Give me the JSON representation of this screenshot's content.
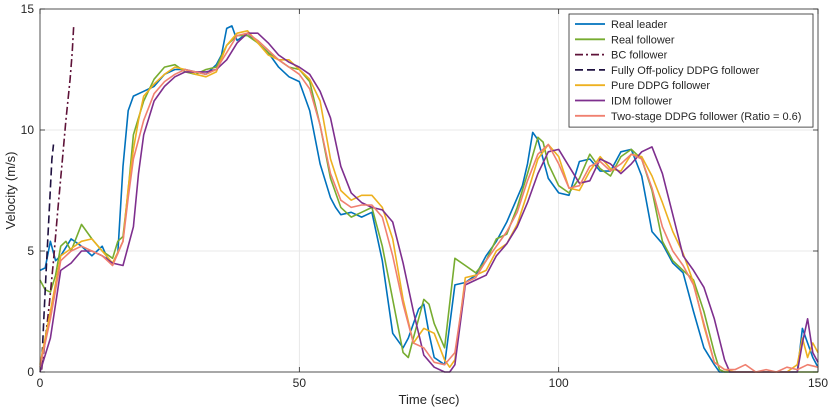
{
  "chart_data": {
    "type": "line",
    "title": "",
    "xlabel": "Time (sec)",
    "ylabel": "Velocity (m/s)",
    "xlim": [
      0,
      150
    ],
    "ylim": [
      0,
      15
    ],
    "xticks": [
      0,
      50,
      100,
      150
    ],
    "yticks": [
      0,
      5,
      10,
      15
    ],
    "grid": true,
    "legend_position": "top-right",
    "series": [
      {
        "name": "Real leader",
        "color": "#0072BD",
        "dash": "solid",
        "x": [
          0,
          1,
          2,
          3,
          4,
          6,
          8,
          10,
          12,
          13,
          14,
          15,
          16,
          17,
          18,
          20,
          22,
          24,
          26,
          28,
          30,
          32,
          34,
          35,
          36,
          37,
          38,
          40,
          42,
          44,
          46,
          48,
          50,
          52,
          54,
          56,
          57,
          58,
          60,
          62,
          64,
          66,
          68,
          70,
          71,
          72,
          73,
          74,
          75,
          76,
          78,
          80,
          82,
          84,
          86,
          88,
          90,
          92,
          93,
          94,
          95,
          96,
          98,
          100,
          102,
          104,
          106,
          108,
          110,
          112,
          114,
          116,
          118,
          120,
          122,
          124,
          126,
          128,
          130,
          131,
          132,
          134,
          136,
          138,
          140,
          142,
          144,
          146,
          147,
          148,
          149,
          150
        ],
        "y": [
          4.2,
          4.3,
          5.4,
          4.6,
          4.8,
          5.5,
          5.2,
          4.8,
          5.2,
          4.7,
          4.5,
          4.9,
          8.5,
          10.8,
          11.4,
          11.6,
          11.8,
          12.3,
          12.5,
          12.5,
          12.4,
          12.3,
          12.7,
          13.1,
          14.2,
          14.3,
          13.7,
          14.0,
          13.6,
          13.2,
          12.6,
          12.2,
          12.0,
          10.8,
          8.6,
          7.2,
          6.8,
          6.5,
          6.6,
          6.4,
          6.6,
          4.6,
          1.6,
          1.0,
          1.4,
          2.0,
          2.6,
          2.8,
          1.6,
          0.6,
          0.3,
          3.6,
          3.7,
          4.0,
          4.8,
          5.4,
          6.2,
          7.2,
          7.7,
          8.6,
          9.9,
          9.6,
          8.0,
          7.4,
          7.3,
          8.7,
          8.8,
          8.3,
          8.3,
          9.1,
          9.2,
          8.1,
          5.8,
          5.3,
          4.5,
          4.1,
          2.5,
          1.0,
          0.3,
          0.0,
          0.0,
          0.0,
          0.0,
          0.0,
          0.0,
          0.0,
          0.0,
          0.0,
          1.8,
          1.2,
          0.6,
          0.2
        ]
      },
      {
        "name": "Real follower",
        "color": "#77AC30",
        "dash": "solid",
        "x": [
          0,
          1,
          2,
          3,
          4,
          5,
          6,
          8,
          10,
          12,
          14,
          15,
          16,
          17,
          18,
          20,
          22,
          24,
          26,
          28,
          30,
          32,
          34,
          36,
          38,
          40,
          42,
          44,
          46,
          48,
          50,
          52,
          54,
          56,
          58,
          60,
          62,
          64,
          66,
          68,
          70,
          71,
          72,
          73,
          74,
          75,
          76,
          78,
          80,
          82,
          84,
          86,
          88,
          90,
          92,
          94,
          96,
          97,
          98,
          100,
          102,
          104,
          106,
          108,
          110,
          112,
          114,
          116,
          118,
          120,
          122,
          124,
          126,
          128,
          130,
          131,
          132,
          134,
          136,
          138,
          140,
          142,
          144,
          146,
          148,
          150
        ],
        "y": [
          3.8,
          3.4,
          3.3,
          4.0,
          5.2,
          5.4,
          5.0,
          6.1,
          5.5,
          5.0,
          4.7,
          5.4,
          5.6,
          7.5,
          9.8,
          11.2,
          12.1,
          12.6,
          12.7,
          12.4,
          12.3,
          12.5,
          12.6,
          13.5,
          13.9,
          13.9,
          13.6,
          13.2,
          12.9,
          12.6,
          12.5,
          12.0,
          10.2,
          8.0,
          6.8,
          6.4,
          6.6,
          6.8,
          5.2,
          3.0,
          0.8,
          0.6,
          1.4,
          2.2,
          3.0,
          2.8,
          2.0,
          1.0,
          4.7,
          4.4,
          4.1,
          4.6,
          5.5,
          5.7,
          6.8,
          8.2,
          9.7,
          9.5,
          8.6,
          7.7,
          7.4,
          8.0,
          9.0,
          8.4,
          8.1,
          8.9,
          9.2,
          8.8,
          7.5,
          5.4,
          4.6,
          4.2,
          3.8,
          2.5,
          0.8,
          0.1,
          0.0,
          0.0,
          0.0,
          0.0,
          0.0,
          0.0,
          0.0,
          0.0,
          0.0,
          0.0
        ]
      },
      {
        "name": "BC follower",
        "color": "#5E1238",
        "dash": "dashdot",
        "x": [
          0.3,
          1.0,
          1.8,
          2.6,
          3.4,
          4.2,
          5.0,
          5.8,
          6.2,
          6.5
        ],
        "y": [
          0.1,
          1.3,
          2.8,
          4.6,
          6.6,
          8.5,
          10.4,
          12.1,
          13.2,
          14.3
        ]
      },
      {
        "name": "Fully Off-policy DDPG follower",
        "color": "#1F1140",
        "dash": "dashed",
        "x": [
          0.3,
          0.7,
          1.1,
          1.5,
          1.9,
          2.3,
          2.6
        ],
        "y": [
          0.2,
          2.0,
          3.8,
          5.5,
          7.2,
          8.8,
          9.4
        ]
      },
      {
        "name": "Pure DDPG follower",
        "color": "#EDB120",
        "dash": "solid",
        "x": [
          0,
          2,
          4,
          6,
          8,
          10,
          12,
          14,
          16,
          17,
          18,
          19,
          20,
          22,
          24,
          26,
          28,
          30,
          32,
          34,
          36,
          38,
          40,
          42,
          44,
          46,
          48,
          50,
          52,
          54,
          56,
          58,
          60,
          62,
          64,
          66,
          68,
          70,
          72,
          74,
          76,
          78,
          79,
          80,
          82,
          84,
          86,
          88,
          90,
          92,
          94,
          96,
          98,
          100,
          102,
          104,
          106,
          108,
          110,
          112,
          114,
          116,
          118,
          120,
          122,
          124,
          126,
          128,
          130,
          132,
          134,
          136,
          138,
          140,
          142,
          144,
          146,
          147,
          148,
          149,
          150
        ],
        "y": [
          0.3,
          2.5,
          4.8,
          5.1,
          5.4,
          5.5,
          5.0,
          4.5,
          5.4,
          7.6,
          9.2,
          10.4,
          11.4,
          11.9,
          12.3,
          12.6,
          12.5,
          12.3,
          12.2,
          12.4,
          13.5,
          14.0,
          14.1,
          13.6,
          13.1,
          12.9,
          12.9,
          12.5,
          12.1,
          11.2,
          8.8,
          7.5,
          7.1,
          7.3,
          7.3,
          6.8,
          5.5,
          3.0,
          1.2,
          1.8,
          1.6,
          0.5,
          0.2,
          0.5,
          3.9,
          4.0,
          4.2,
          5.0,
          5.3,
          6.1,
          7.4,
          8.8,
          9.4,
          8.9,
          7.6,
          7.5,
          8.3,
          8.9,
          8.4,
          8.3,
          9.0,
          8.9,
          8.1,
          7.0,
          5.8,
          4.9,
          3.7,
          1.9,
          0.4,
          0.1,
          0.0,
          0.0,
          0.0,
          0.0,
          0.0,
          0.0,
          0.3,
          1.4,
          0.6,
          1.2,
          0.8
        ]
      },
      {
        "name": "IDM follower",
        "color": "#7E2F8E",
        "dash": "solid",
        "x": [
          0,
          2,
          4,
          6,
          8,
          10,
          12,
          14,
          16,
          18,
          19,
          20,
          22,
          24,
          26,
          28,
          30,
          32,
          34,
          36,
          38,
          40,
          42,
          44,
          46,
          48,
          50,
          52,
          54,
          56,
          58,
          60,
          62,
          64,
          66,
          68,
          70,
          72,
          74,
          76,
          78,
          79,
          80,
          82,
          84,
          86,
          88,
          90,
          92,
          94,
          96,
          98,
          100,
          102,
          104,
          106,
          108,
          110,
          112,
          114,
          116,
          118,
          120,
          122,
          124,
          126,
          128,
          130,
          132,
          133,
          134,
          136,
          138,
          140,
          142,
          144,
          146,
          147,
          148,
          149,
          150
        ],
        "y": [
          0.0,
          1.4,
          4.2,
          4.5,
          5.0,
          5.0,
          4.8,
          4.5,
          4.4,
          6.0,
          8.2,
          9.8,
          11.2,
          11.8,
          12.2,
          12.4,
          12.4,
          12.4,
          12.5,
          12.9,
          13.6,
          14.0,
          14.0,
          13.6,
          13.1,
          12.8,
          12.6,
          12.3,
          11.6,
          10.5,
          8.5,
          7.4,
          7.0,
          6.8,
          6.7,
          6.2,
          4.5,
          2.5,
          0.7,
          0.2,
          0.0,
          0.0,
          0.3,
          3.6,
          3.8,
          4.0,
          4.8,
          5.3,
          6.0,
          7.0,
          8.2,
          9.1,
          9.2,
          8.5,
          7.8,
          7.9,
          8.8,
          8.6,
          8.2,
          8.6,
          9.1,
          9.3,
          8.2,
          6.5,
          4.8,
          4.2,
          3.5,
          2.2,
          0.5,
          0.0,
          0.0,
          0.0,
          0.0,
          0.0,
          0.0,
          0.0,
          0.0,
          1.2,
          2.2,
          0.8,
          0.4
        ]
      },
      {
        "name": "Two-stage DDPG follower (Ratio = 0.6)",
        "color": "#F08070",
        "dash": "solid",
        "x": [
          0,
          2,
          4,
          6,
          8,
          10,
          12,
          14,
          16,
          17,
          18,
          20,
          22,
          24,
          26,
          28,
          30,
          32,
          34,
          36,
          38,
          40,
          42,
          44,
          46,
          48,
          50,
          52,
          54,
          56,
          58,
          60,
          62,
          64,
          66,
          68,
          70,
          72,
          74,
          76,
          78,
          80,
          82,
          84,
          86,
          88,
          90,
          92,
          94,
          96,
          98,
          100,
          102,
          104,
          106,
          108,
          110,
          112,
          114,
          116,
          118,
          120,
          122,
          124,
          126,
          128,
          130,
          132,
          134,
          136,
          138,
          140,
          142,
          144,
          146,
          148,
          150
        ],
        "y": [
          0.2,
          2.2,
          4.6,
          5.0,
          5.2,
          5.0,
          4.8,
          4.4,
          5.4,
          7.2,
          8.8,
          10.4,
          11.5,
          12.0,
          12.3,
          12.5,
          12.4,
          12.3,
          12.5,
          13.2,
          13.9,
          14.0,
          13.7,
          13.3,
          12.9,
          12.6,
          12.3,
          11.7,
          10.2,
          8.2,
          7.1,
          6.8,
          6.9,
          6.9,
          6.4,
          4.8,
          2.8,
          1.2,
          1.0,
          0.4,
          0.3,
          0.8,
          3.7,
          3.9,
          4.6,
          5.2,
          5.8,
          6.6,
          7.9,
          9.0,
          9.4,
          8.6,
          7.6,
          7.7,
          8.5,
          8.7,
          8.3,
          8.6,
          9.0,
          8.8,
          7.6,
          6.0,
          5.0,
          4.4,
          3.6,
          2.0,
          0.4,
          0.1,
          0.1,
          0.3,
          0.0,
          0.1,
          0.0,
          0.2,
          0.1,
          0.3,
          0.2
        ]
      }
    ]
  }
}
